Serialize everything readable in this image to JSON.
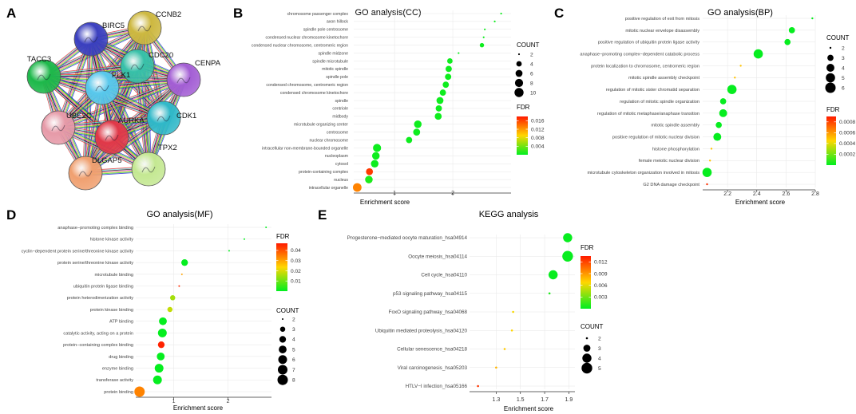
{
  "colors": {
    "fdr_low": "#00ee20",
    "fdr_mid": "#ffd700",
    "fdr_high": "#ff1a00",
    "grid": "#e6e6e6",
    "axis": "#333333"
  },
  "panels": {
    "A": {
      "letter": "A",
      "nodes": [
        {
          "id": "CCNB2",
          "label": "CCNB2",
          "color": "#cdb840"
        },
        {
          "id": "BIRC5",
          "label": "BIRC5",
          "color": "#3a3fbf"
        },
        {
          "id": "CDC20",
          "label": "CDC20",
          "color": "#37c0a8"
        },
        {
          "id": "CENPA",
          "label": "CENPA",
          "color": "#a35ed4"
        },
        {
          "id": "TACC3",
          "label": "TACC3",
          "color": "#1db84a"
        },
        {
          "id": "PLK1",
          "label": "PLK1",
          "color": "#58c8ec"
        },
        {
          "id": "CDK1",
          "label": "CDK1",
          "color": "#2fb8c8"
        },
        {
          "id": "AURKA",
          "label": "AURKA",
          "color": "#e03848"
        },
        {
          "id": "UBE2C",
          "label": "UBE2C",
          "color": "#e69aa8"
        },
        {
          "id": "TPX2",
          "label": "TPX2",
          "color": "#c4e892"
        },
        {
          "id": "DLGAP5",
          "label": "DLGAP5",
          "color": "#f0a070"
        }
      ]
    },
    "B": {
      "letter": "B",
      "title": "GO analysis(CC)",
      "xlabel": "Enrichment score",
      "count_title": "COUNT",
      "fdr_title": "FDR"
    },
    "C": {
      "letter": "C",
      "title": "GO analysis(BP)",
      "xlabel": "Enrichment score",
      "count_title": "COUNT",
      "fdr_title": "FDR"
    },
    "D": {
      "letter": "D",
      "title": "GO analysis(MF)",
      "xlabel": "Enrichment score",
      "count_title": "COUNT",
      "fdr_title": "FDR"
    },
    "E": {
      "letter": "E",
      "title": "KEGG analysis",
      "xlabel": "Enrichment score",
      "count_title": "COUNT",
      "fdr_title": "FDR"
    }
  },
  "chart_data": [
    {
      "id": "B",
      "type": "scatter",
      "title": "GO analysis(CC)",
      "xlabel": "Enrichment score",
      "xlim": [
        0.3,
        3.0
      ],
      "xticks": [
        1,
        2
      ],
      "fdr_ticks": [
        0.004,
        0.008,
        0.012,
        0.016
      ],
      "fdr_range": [
        0,
        0.018
      ],
      "count_ticks": [
        2,
        4,
        6,
        8,
        10
      ],
      "count_range": [
        2,
        10
      ],
      "points": [
        {
          "term": "chromosome passenger complex",
          "x": 2.83,
          "count": 2,
          "fdr": 0.0005
        },
        {
          "term": "axon hillock",
          "x": 2.72,
          "count": 2,
          "fdr": 0.0005
        },
        {
          "term": "spindle pole centrosome",
          "x": 2.55,
          "count": 2,
          "fdr": 0.0005
        },
        {
          "term": "condensed nuclear chromosome kinetochore",
          "x": 2.53,
          "count": 2,
          "fdr": 0.0005
        },
        {
          "term": "condensed nuclear chromosome, centromeric region",
          "x": 2.5,
          "count": 3,
          "fdr": 0.0005
        },
        {
          "term": "spindle midzone",
          "x": 2.1,
          "count": 2,
          "fdr": 0.0005
        },
        {
          "term": "spindle microtubule",
          "x": 1.95,
          "count": 4,
          "fdr": 0.0005
        },
        {
          "term": "mitotic spindle",
          "x": 1.93,
          "count": 5,
          "fdr": 0.0005
        },
        {
          "term": "spindle pole",
          "x": 1.92,
          "count": 5,
          "fdr": 0.0005
        },
        {
          "term": "condensed chromosome, centromeric region",
          "x": 1.88,
          "count": 5,
          "fdr": 0.0005
        },
        {
          "term": "condensed chromosome kinetochore",
          "x": 1.83,
          "count": 5,
          "fdr": 0.0005
        },
        {
          "term": "spindle",
          "x": 1.78,
          "count": 6,
          "fdr": 0.0005
        },
        {
          "term": "centriole",
          "x": 1.76,
          "count": 5,
          "fdr": 0.0005
        },
        {
          "term": "midbody",
          "x": 1.75,
          "count": 6,
          "fdr": 0.0005
        },
        {
          "term": "microtubule organizing center",
          "x": 1.4,
          "count": 7,
          "fdr": 0.0005
        },
        {
          "term": "centrosome",
          "x": 1.38,
          "count": 6,
          "fdr": 0.0005
        },
        {
          "term": "nuclear chromosome",
          "x": 1.25,
          "count": 5,
          "fdr": 0.0005
        },
        {
          "term": "intracellular non-membrane-bounded organelle",
          "x": 0.7,
          "count": 8,
          "fdr": 0.0005
        },
        {
          "term": "nucleoplasm",
          "x": 0.68,
          "count": 7,
          "fdr": 0.0005
        },
        {
          "term": "cytosol",
          "x": 0.66,
          "count": 7,
          "fdr": 0.0005
        },
        {
          "term": "protein-containing complex",
          "x": 0.57,
          "count": 6,
          "fdr": 0.0165
        },
        {
          "term": "nucleus",
          "x": 0.56,
          "count": 7,
          "fdr": 0.001
        },
        {
          "term": "intracellular organelle",
          "x": 0.36,
          "count": 9,
          "fdr": 0.013
        }
      ]
    },
    {
      "id": "C",
      "type": "scatter",
      "title": "GO analysis(BP)",
      "xlabel": "Enrichment score",
      "xlim": [
        2.03,
        2.8
      ],
      "xticks": [
        2.2,
        2.4,
        2.6,
        2.8
      ],
      "fdr_ticks": [
        0.0002,
        0.0004,
        0.0006,
        0.0008
      ],
      "fdr_range": [
        0,
        0.0009
      ],
      "count_ticks": [
        2,
        3,
        4,
        5,
        6
      ],
      "count_range": [
        2,
        6
      ],
      "points": [
        {
          "term": "positive regulation of exit from mitosis",
          "x": 2.78,
          "count": 2,
          "fdr": 1e-05
        },
        {
          "term": "mitotic nuclear envelope disassembly",
          "x": 2.64,
          "count": 3,
          "fdr": 1e-05
        },
        {
          "term": "positive regulation of ubiquitin protein ligase activity",
          "x": 2.61,
          "count": 3,
          "fdr": 1e-05
        },
        {
          "term": "anaphase−promoting complex−dependent catabolic process",
          "x": 2.41,
          "count": 5,
          "fdr": 1e-05
        },
        {
          "term": "protein localization to chromosome, centromeric region",
          "x": 2.29,
          "count": 2,
          "fdr": 0.0005
        },
        {
          "term": "mitotic spindle assembly checkpoint",
          "x": 2.25,
          "count": 2,
          "fdr": 0.0005
        },
        {
          "term": "regulation of mitotic sister chromatid separation",
          "x": 2.23,
          "count": 5,
          "fdr": 1e-05
        },
        {
          "term": "regulation of mitotic spindle organization",
          "x": 2.17,
          "count": 3,
          "fdr": 1e-05
        },
        {
          "term": "regulation of mitotic metaphase/anaphase transition",
          "x": 2.17,
          "count": 4,
          "fdr": 1e-05
        },
        {
          "term": "mitotic spindle assembly",
          "x": 2.14,
          "count": 3,
          "fdr": 1e-05
        },
        {
          "term": "positive regulation of mitotic nuclear division",
          "x": 2.13,
          "count": 4,
          "fdr": 1e-05
        },
        {
          "term": "histone phosphorylation",
          "x": 2.09,
          "count": 2,
          "fdr": 0.0005
        },
        {
          "term": "female meiotic nuclear division",
          "x": 2.08,
          "count": 2,
          "fdr": 0.0005
        },
        {
          "term": "microtubule cytoskeleton organization involved in mitosis",
          "x": 2.06,
          "count": 5,
          "fdr": 1e-05
        },
        {
          "term": "G2 DNA damage checkpoint",
          "x": 2.06,
          "count": 2,
          "fdr": 0.00085
        }
      ]
    },
    {
      "id": "D",
      "type": "scatter",
      "title": "GO analysis(MF)",
      "xlabel": "Enrichment score",
      "xlim": [
        0.3,
        2.8
      ],
      "xticks": [
        1,
        2
      ],
      "fdr_ticks": [
        0.01,
        0.02,
        0.03,
        0.04
      ],
      "fdr_range": [
        0,
        0.047
      ],
      "count_ticks": [
        2,
        3,
        4,
        5,
        6,
        7,
        8
      ],
      "count_range": [
        2,
        8
      ],
      "points": [
        {
          "term": "anaphase−promoting complex binding",
          "x": 2.7,
          "count": 2,
          "fdr": 0.0005
        },
        {
          "term": "histone kinase activity",
          "x": 2.3,
          "count": 2,
          "fdr": 0.0005
        },
        {
          "term": "cyclin−dependent protein serine/threonine kinase activity",
          "x": 2.02,
          "count": 2,
          "fdr": 0.0005
        },
        {
          "term": "protein serine/threonine kinase activity",
          "x": 1.2,
          "count": 4,
          "fdr": 0.0005
        },
        {
          "term": "microtubule binding",
          "x": 1.15,
          "count": 2,
          "fdr": 0.03
        },
        {
          "term": "ubiquitin protein ligase binding",
          "x": 1.1,
          "count": 2,
          "fdr": 0.045
        },
        {
          "term": "protein heterodimerization activity",
          "x": 0.98,
          "count": 3,
          "fdr": 0.015
        },
        {
          "term": "protein kinase binding",
          "x": 0.93,
          "count": 3,
          "fdr": 0.018
        },
        {
          "term": "ATP binding",
          "x": 0.8,
          "count": 5,
          "fdr": 0.0005
        },
        {
          "term": "catalytic activity, acting on a protein",
          "x": 0.79,
          "count": 6,
          "fdr": 0.0005
        },
        {
          "term": "protein−containing complex binding",
          "x": 0.77,
          "count": 4,
          "fdr": 0.046
        },
        {
          "term": "drug binding",
          "x": 0.76,
          "count": 5,
          "fdr": 0.0005
        },
        {
          "term": "enzyme binding",
          "x": 0.73,
          "count": 6,
          "fdr": 0.0005
        },
        {
          "term": "transferase activity",
          "x": 0.7,
          "count": 6,
          "fdr": 0.0005
        },
        {
          "term": "protein binding",
          "x": 0.37,
          "count": 8,
          "fdr": 0.034
        }
      ]
    },
    {
      "id": "E",
      "type": "scatter",
      "title": "KEGG analysis",
      "xlabel": "Enrichment score",
      "xlim": [
        1.08,
        1.95
      ],
      "xticks": [
        1.3,
        1.5,
        1.7,
        1.9
      ],
      "fdr_ticks": [
        0.003,
        0.006,
        0.009,
        0.012
      ],
      "fdr_range": [
        0,
        0.0135
      ],
      "count_ticks": [
        2,
        3,
        4,
        5
      ],
      "count_range": [
        2,
        5
      ],
      "points": [
        {
          "term": "Progesterone−mediated oocyte maturation_hsa04914",
          "x": 1.89,
          "count": 4,
          "fdr": 0.0002
        },
        {
          "term": "Oocyte meiosis_hsa04114",
          "x": 1.89,
          "count": 5,
          "fdr": 0.0002
        },
        {
          "term": "Cell cycle_hsa04110",
          "x": 1.77,
          "count": 4,
          "fdr": 0.0002
        },
        {
          "term": "p53 signaling pathway_hsa04115",
          "x": 1.74,
          "count": 2,
          "fdr": 0.0008
        },
        {
          "term": "FoxO signaling pathway_hsa04068",
          "x": 1.44,
          "count": 2,
          "fdr": 0.0065
        },
        {
          "term": "Ubiquitin mediated proteolysis_hsa04120",
          "x": 1.43,
          "count": 2,
          "fdr": 0.0068
        },
        {
          "term": "Cellular senescence_hsa04218",
          "x": 1.37,
          "count": 2,
          "fdr": 0.0072
        },
        {
          "term": "Viral carcinogenesis_hsa05203",
          "x": 1.3,
          "count": 2,
          "fdr": 0.008
        },
        {
          "term": "HTLV−I infection_hsa05166",
          "x": 1.15,
          "count": 2,
          "fdr": 0.0125
        }
      ]
    }
  ]
}
